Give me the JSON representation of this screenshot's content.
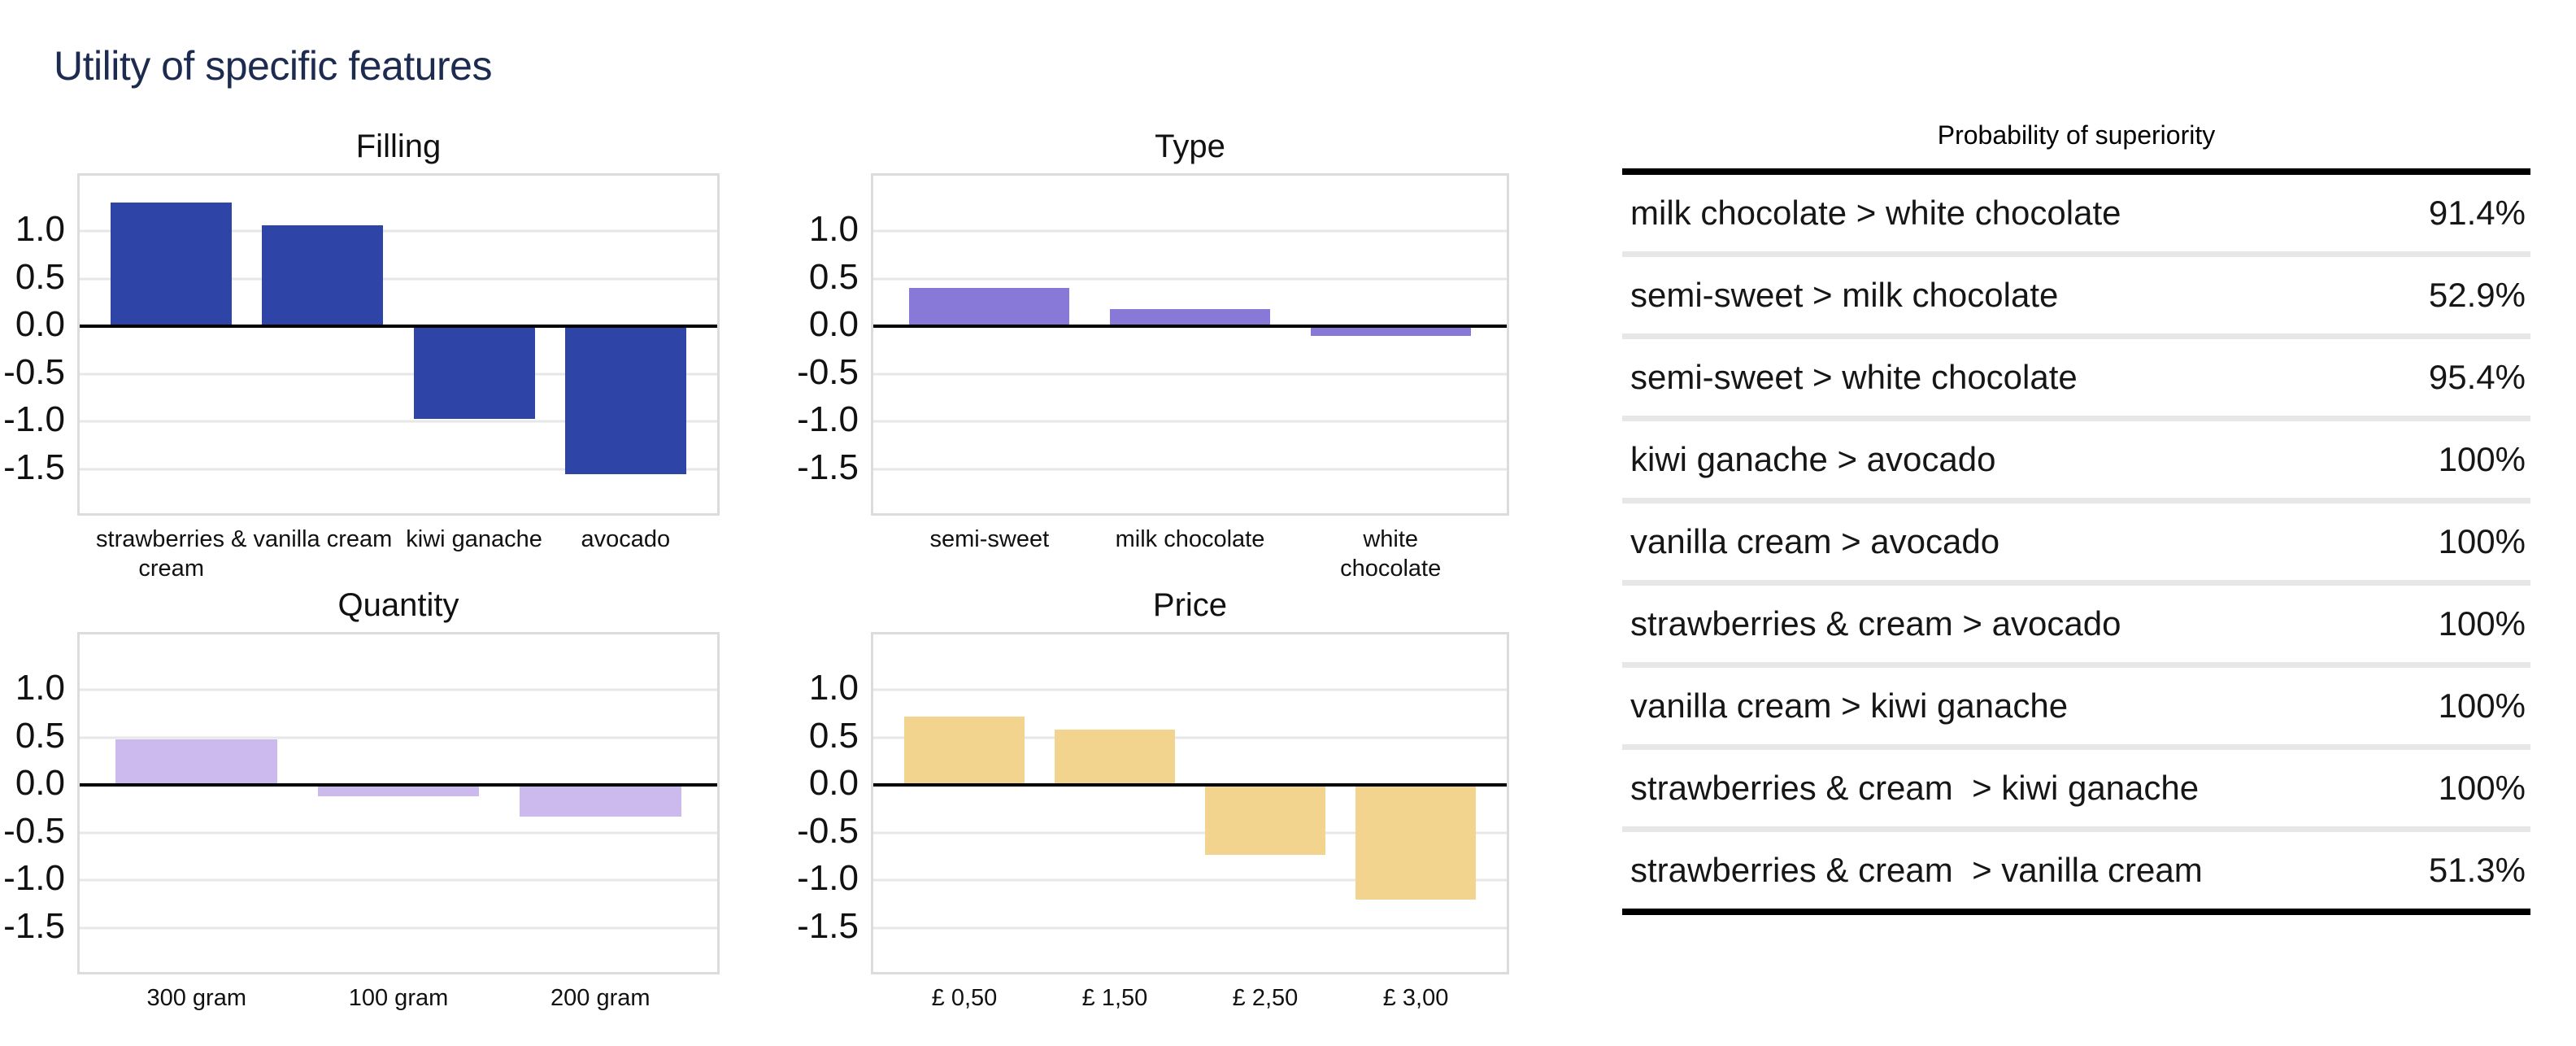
{
  "page_title": "Utility of specific features",
  "table": {
    "title": "Probability of superiority",
    "rows": [
      {
        "label": "milk chocolate > white chocolate",
        "value": "91.4%"
      },
      {
        "label": "semi-sweet > milk chocolate",
        "value": "52.9%"
      },
      {
        "label": "semi-sweet > white chocolate",
        "value": "95.4%"
      },
      {
        "label": "kiwi ganache > avocado",
        "value": "100%"
      },
      {
        "label": "vanilla cream > avocado",
        "value": "100%"
      },
      {
        "label": "strawberries & cream > avocado",
        "value": "100%"
      },
      {
        "label": "vanilla cream > kiwi ganache",
        "value": "100%"
      },
      {
        "label": "strawberries & cream  > kiwi ganache",
        "value": "100%"
      },
      {
        "label": "strawberries & cream  > vanilla cream",
        "value": "51.3%"
      }
    ]
  },
  "chart_data": [
    {
      "type": "bar",
      "title": "Filling",
      "categories": [
        "strawberries &\ncream",
        "vanilla cream",
        "kiwi ganache",
        "avocado"
      ],
      "values": [
        1.3,
        1.06,
        -0.97,
        -1.55
      ],
      "color": "#2e44a6",
      "xlabel": "",
      "ylabel": "",
      "ylim": [
        -1.96,
        1.58
      ],
      "yticks": [
        "1.0",
        "0.5",
        "0.0",
        "-0.5",
        "-1.0",
        "-1.5"
      ],
      "grid": true,
      "legend": "none"
    },
    {
      "type": "bar",
      "title": "Type",
      "categories": [
        "semi-sweet",
        "milk chocolate",
        "white chocolate"
      ],
      "values": [
        0.4,
        0.18,
        -0.1
      ],
      "color": "#8878d8",
      "xlabel": "",
      "ylabel": "",
      "ylim": [
        -1.96,
        1.58
      ],
      "yticks": [
        "1.0",
        "0.5",
        "0.0",
        "-0.5",
        "-1.0",
        "-1.5"
      ],
      "grid": true,
      "legend": "none"
    },
    {
      "type": "bar",
      "title": "Quantity",
      "categories": [
        "300 gram",
        "100 gram",
        "200 gram"
      ],
      "values": [
        0.48,
        -0.12,
        -0.33
      ],
      "color": "#ccbaee",
      "xlabel": "",
      "ylabel": "",
      "ylim": [
        -1.96,
        1.58
      ],
      "yticks": [
        "1.0",
        "0.5",
        "0.0",
        "-0.5",
        "-1.0",
        "-1.5"
      ],
      "grid": true,
      "legend": "none"
    },
    {
      "type": "bar",
      "title": "Price",
      "categories": [
        "£ 0,50",
        "£ 1,50",
        "£ 2,50",
        "£ 3,00"
      ],
      "values": [
        0.72,
        0.58,
        -0.73,
        -1.2
      ],
      "color": "#f2d48e",
      "xlabel": "",
      "ylabel": "",
      "ylim": [
        -1.96,
        1.58
      ],
      "yticks": [
        "1.0",
        "0.5",
        "0.0",
        "-0.5",
        "-1.0",
        "-1.5"
      ],
      "grid": true,
      "legend": "none"
    }
  ]
}
